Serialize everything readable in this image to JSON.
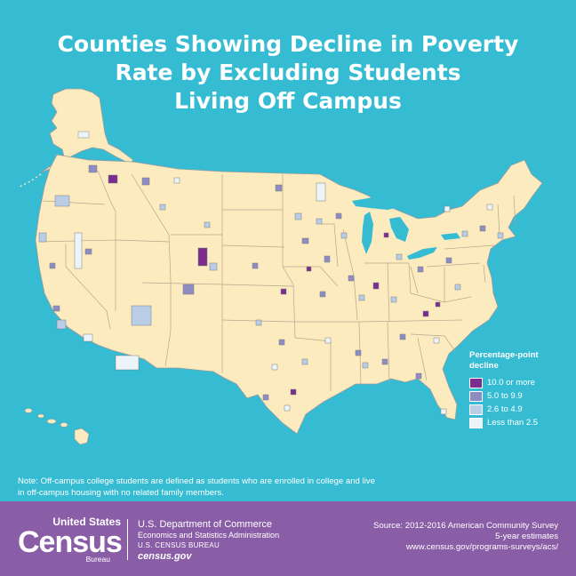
{
  "title_lines": [
    "Counties Showing Decline in Poverty",
    "Rate by Excluding Students",
    "Living Off Campus"
  ],
  "colors": {
    "background": "#35bcd3",
    "land": "#fdebc0",
    "border": "#9c9c9c",
    "footer": "#8a5da7",
    "text": "#ffffff"
  },
  "legend": {
    "title": "Percentage-point decline",
    "title_line1": "Percentage-point",
    "title_line2": "decline",
    "items": [
      {
        "label": "10.0 or more",
        "color": "#7b2d8e"
      },
      {
        "label": "5.0 to 9.9",
        "color": "#8f8cc4"
      },
      {
        "label": "2.6 to 4.9",
        "color": "#b9cde6"
      },
      {
        "label": "Less than 2.5",
        "color": "#ecf4fa"
      }
    ]
  },
  "note": "Note: Off-campus college students are defined as students who are enrolled in college and live in off-campus housing with no related family members.",
  "footer": {
    "logo_top": "United States",
    "logo_main": "Census",
    "logo_bureau": "Bureau",
    "dept_name": "U.S. Department of Commerce",
    "dept_sub": "Economics and Statistics Administration",
    "dept_bureau": "U.S. CENSUS BUREAU",
    "dept_url": "census.gov",
    "source_line1": "Source: 2012-2016 American Community Survey",
    "source_line2": "5-year estimates",
    "source_line3": "www.census.gov/programs-surveys/acs/"
  }
}
